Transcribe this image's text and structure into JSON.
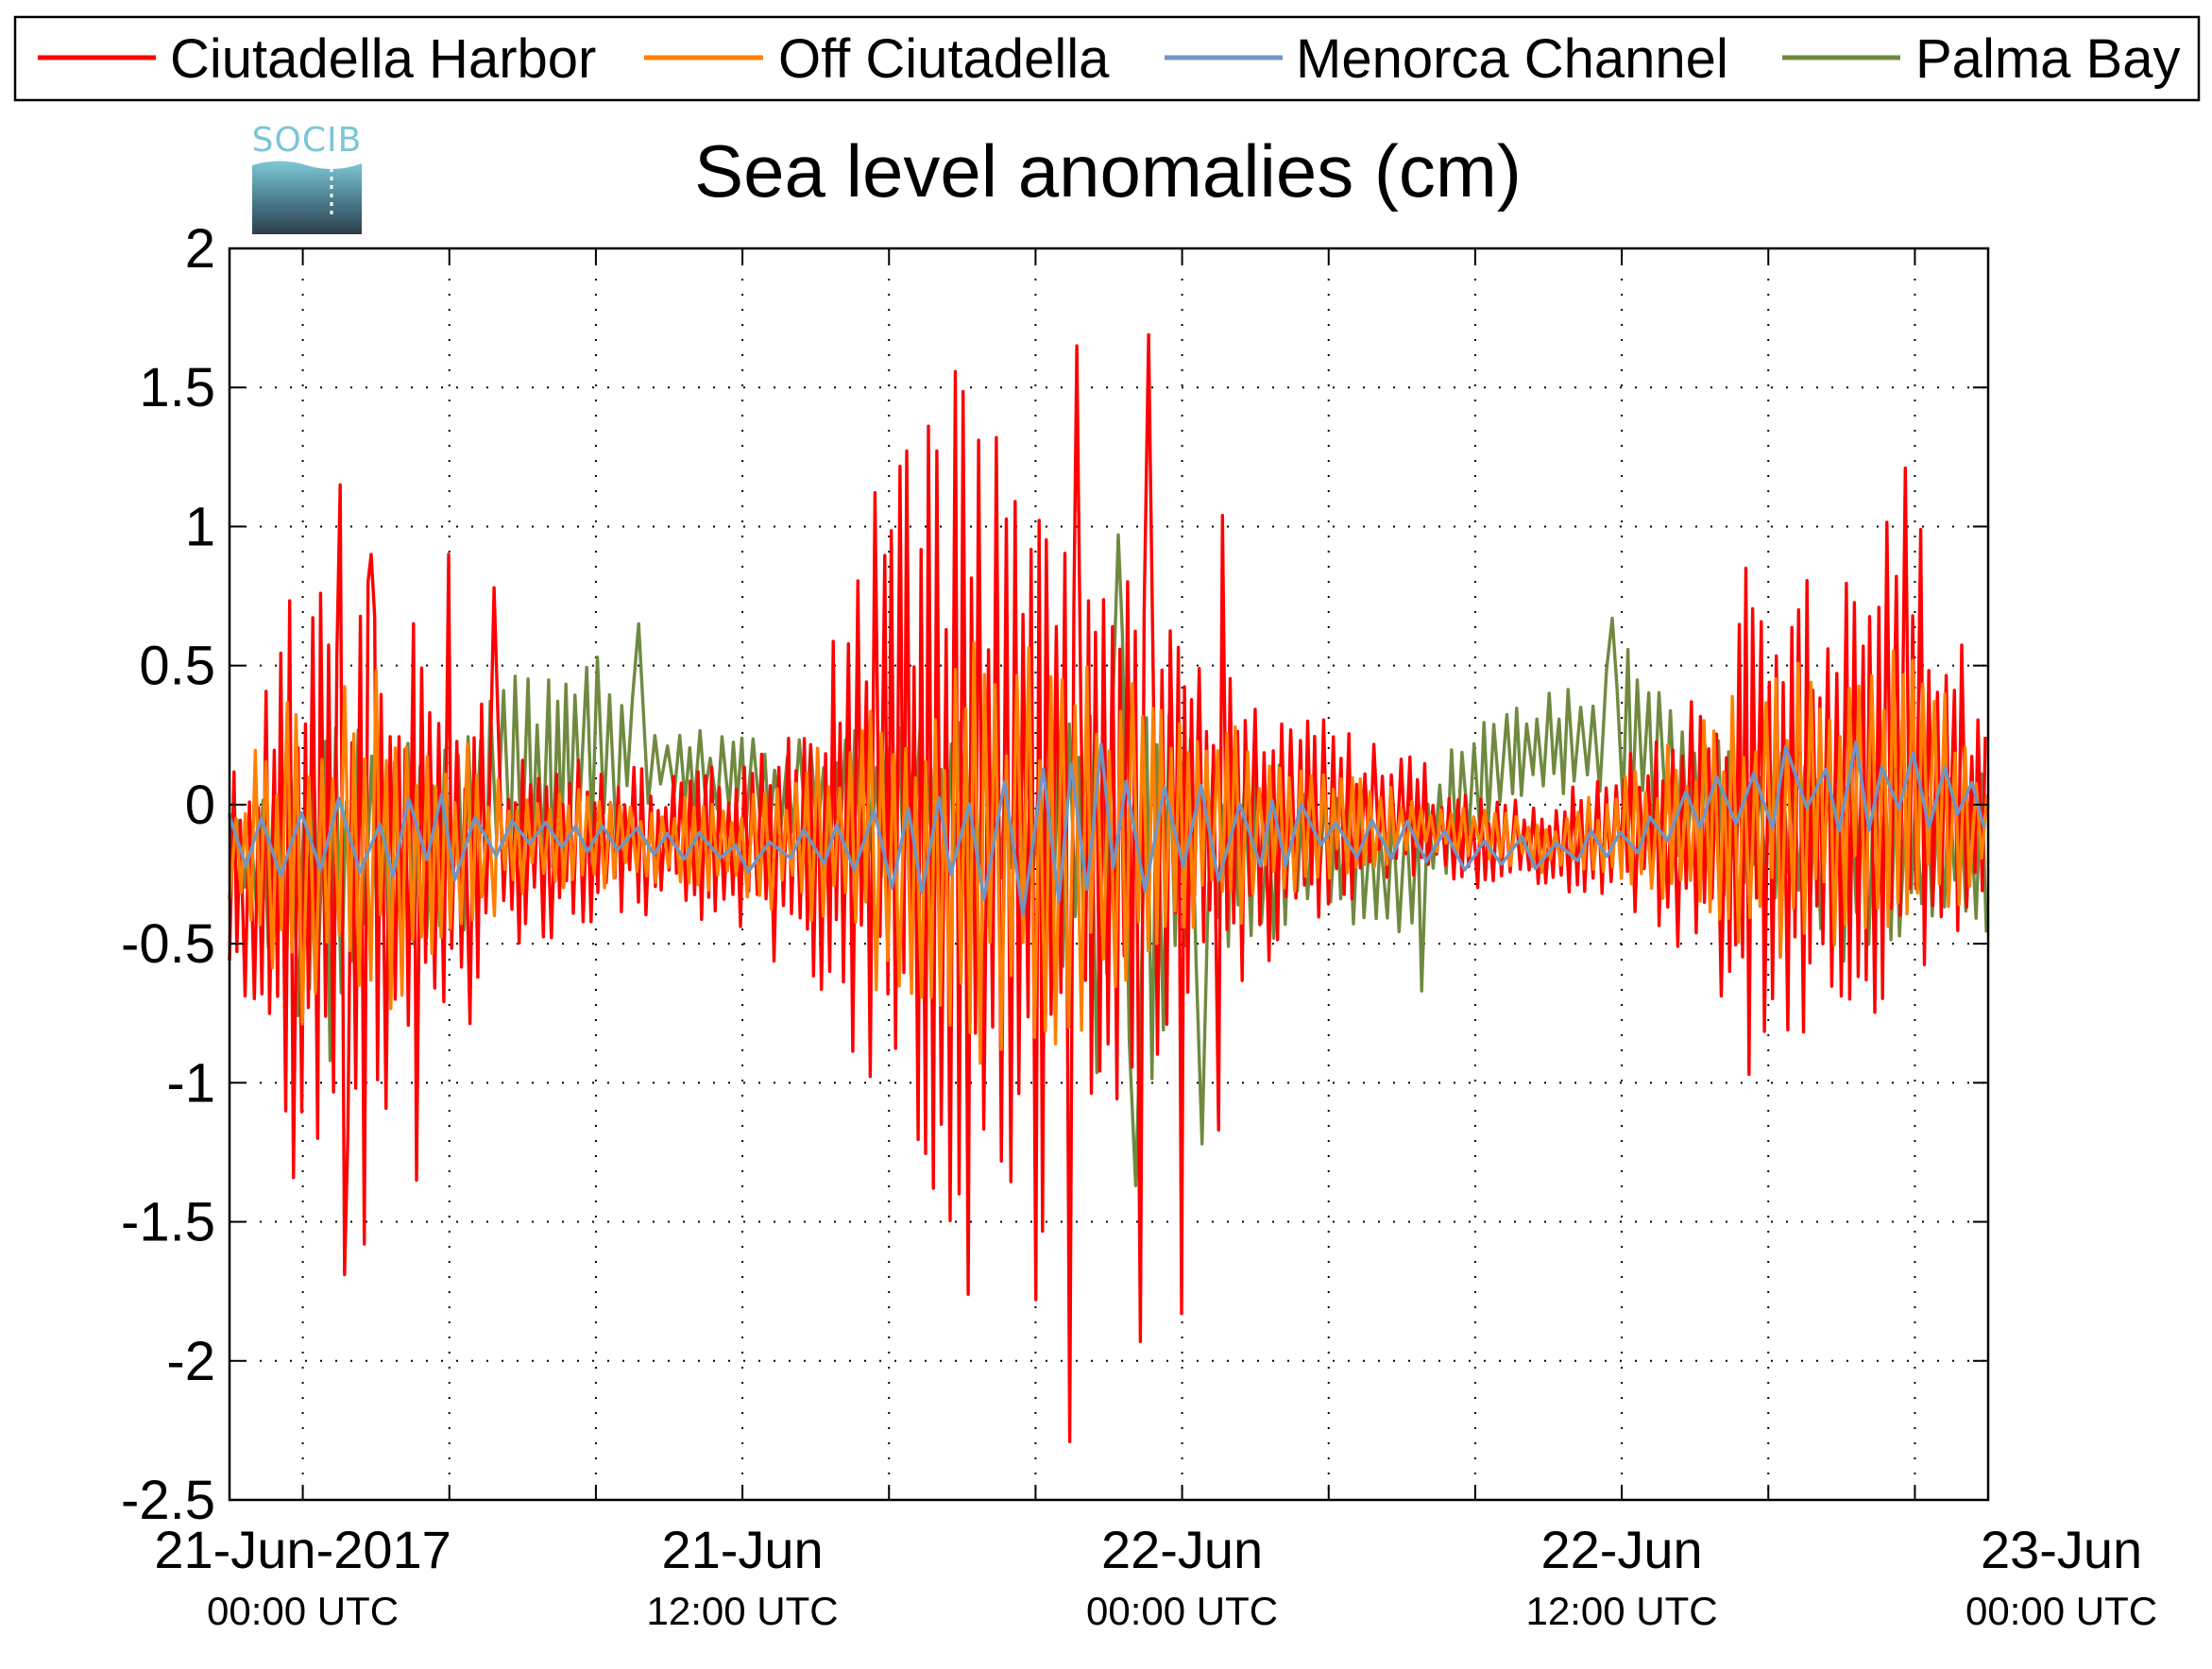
{
  "chart_data": {
    "type": "line",
    "title": "Sea level anomalies (cm)",
    "logo": "SOCIB",
    "xlabel": "",
    "ylabel": "",
    "ylim": [
      -2.5,
      2
    ],
    "yticks": [
      "2",
      "1.5",
      "1",
      "0.5",
      "0",
      "-0.5",
      "-1",
      "-1.5",
      "-2",
      "-2.5"
    ],
    "ytick_values": [
      2,
      1.5,
      1,
      0.5,
      0,
      -0.5,
      -1,
      -1.5,
      -2,
      -2.5
    ],
    "xlim_hours": [
      -2,
      46
    ],
    "xtick_hours": [
      0,
      12,
      24,
      36,
      48
    ],
    "xticks": [
      {
        "date": "21-Jun-2017",
        "time": "00:00 UTC"
      },
      {
        "date": "21-Jun",
        "time": "12:00 UTC"
      },
      {
        "date": "22-Jun",
        "time": "00:00 UTC"
      },
      {
        "date": "22-Jun",
        "time": "12:00 UTC"
      },
      {
        "date": "23-Jun",
        "time": "00:00 UTC"
      }
    ],
    "grid": true,
    "legend_position": "top",
    "colors": {
      "Ciutadella Harbor": "#ff0000",
      "Off Ciutadella": "#ff8000",
      "Menorca Channel": "#6f95c4",
      "Palma Bay": "#6f8a3f"
    },
    "series": [
      {
        "name": "Ciutadella Harbor",
        "envelope": {
          "hours": [
            -2,
            0,
            2,
            4,
            6,
            8,
            10,
            12,
            14,
            16,
            18,
            20,
            22,
            24,
            26,
            28,
            30,
            32,
            34,
            36,
            38,
            40,
            42,
            44,
            46
          ],
          "upper": [
            0.1,
            0.9,
            0.9,
            0.5,
            0.2,
            0.2,
            0.15,
            0.2,
            0.4,
            1.3,
            1.65,
            1.5,
            0.9,
            0.7,
            0.4,
            0.3,
            0.2,
            0.05,
            0.0,
            0.2,
            0.45,
            0.8,
            0.9,
            1.1,
            0.3
          ],
          "lower": [
            -0.6,
            -1.5,
            -1.2,
            -0.9,
            -0.5,
            -0.45,
            -0.4,
            -0.5,
            -0.7,
            -1.2,
            -2.0,
            -1.8,
            -1.2,
            -0.8,
            -0.6,
            -0.4,
            -0.3,
            -0.3,
            -0.3,
            -0.35,
            -0.6,
            -0.9,
            -0.8,
            -0.7,
            -0.4
          ]
        },
        "peaks": [
          {
            "hour": 1.0,
            "value": 1.15
          },
          {
            "hour": 1.9,
            "value": 0.9
          },
          {
            "hour": 4.0,
            "value": 0.9
          },
          {
            "hour": 5.2,
            "value": 0.78
          },
          {
            "hour": 18.9,
            "value": 1.32
          },
          {
            "hour": 21.1,
            "value": 1.65
          },
          {
            "hour": 23.1,
            "value": 1.69
          },
          {
            "hour": 25.1,
            "value": 1.04
          },
          {
            "hour": 39.4,
            "value": 0.85
          },
          {
            "hour": 43.7,
            "value": 1.21
          }
        ],
        "troughs": [
          {
            "hour": 0.4,
            "value": -1.2
          },
          {
            "hour": 1.1,
            "value": -1.69
          },
          {
            "hour": 1.7,
            "value": -1.58
          },
          {
            "hour": 3.1,
            "value": -1.35
          },
          {
            "hour": 20.0,
            "value": -1.78
          },
          {
            "hour": 20.9,
            "value": -2.29
          },
          {
            "hour": 22.8,
            "value": -1.93
          },
          {
            "hour": 24.0,
            "value": -1.83
          },
          {
            "hour": 25.0,
            "value": -1.17
          },
          {
            "hour": 39.5,
            "value": -0.97
          }
        ]
      },
      {
        "name": "Off Ciutadella",
        "envelope": {
          "hours": [
            -2,
            0,
            2,
            4,
            6,
            8,
            10,
            12,
            14,
            16,
            18,
            20,
            22,
            24,
            26,
            28,
            30,
            32,
            34,
            36,
            38,
            40,
            42,
            44,
            46
          ],
          "upper": [
            0.05,
            0.5,
            0.5,
            0.3,
            0.1,
            0.05,
            0.05,
            0.05,
            0.2,
            0.4,
            0.65,
            0.65,
            0.6,
            0.4,
            0.25,
            0.15,
            0.05,
            0.0,
            -0.05,
            0.1,
            0.3,
            0.55,
            0.45,
            0.6,
            0.15
          ],
          "lower": [
            -0.4,
            -0.9,
            -0.8,
            -0.6,
            -0.35,
            -0.3,
            -0.3,
            -0.35,
            -0.45,
            -0.75,
            -0.95,
            -0.9,
            -0.8,
            -0.55,
            -0.4,
            -0.3,
            -0.2,
            -0.2,
            -0.25,
            -0.3,
            -0.45,
            -0.6,
            -0.5,
            -0.45,
            -0.3
          ]
        }
      },
      {
        "name": "Menorca Channel",
        "envelope": {
          "hours": [
            -2,
            0,
            2,
            4,
            6,
            8,
            10,
            12,
            14,
            16,
            18,
            20,
            22,
            24,
            26,
            28,
            30,
            32,
            34,
            36,
            38,
            40,
            42,
            44,
            46
          ],
          "upper": [
            0.0,
            0.1,
            0.05,
            0.05,
            0.0,
            -0.05,
            -0.1,
            -0.1,
            -0.05,
            0.0,
            0.1,
            0.2,
            0.3,
            0.2,
            0.05,
            0.0,
            -0.05,
            -0.1,
            -0.1,
            -0.05,
            0.1,
            0.2,
            0.25,
            0.2,
            0.1
          ],
          "lower": [
            -0.3,
            -0.4,
            -0.35,
            -0.3,
            -0.2,
            -0.2,
            -0.2,
            -0.25,
            -0.25,
            -0.3,
            -0.4,
            -0.4,
            -0.35,
            -0.3,
            -0.25,
            -0.2,
            -0.2,
            -0.25,
            -0.25,
            -0.2,
            -0.15,
            -0.15,
            -0.1,
            -0.1,
            -0.1
          ]
        }
      },
      {
        "name": "Palma Bay",
        "envelope": {
          "hours": [
            -2,
            0,
            2,
            4,
            6,
            8,
            10,
            12,
            14,
            16,
            18,
            20,
            22,
            24,
            26,
            28,
            30,
            32,
            34,
            36,
            38,
            40,
            42,
            44,
            46
          ],
          "upper": [
            0.0,
            0.3,
            0.3,
            0.35,
            0.5,
            0.6,
            0.3,
            0.25,
            0.25,
            0.3,
            0.3,
            0.3,
            0.9,
            0.3,
            0.2,
            0.1,
            0.0,
            0.3,
            0.4,
            0.6,
            0.3,
            0.2,
            0.2,
            0.15,
            0.2
          ],
          "lower": [
            -0.2,
            -0.9,
            -0.7,
            -0.5,
            -0.3,
            -0.2,
            0.0,
            -0.1,
            -0.2,
            -0.3,
            -0.3,
            -0.35,
            -1.35,
            -0.8,
            -0.5,
            -0.45,
            -0.5,
            -0.1,
            0.0,
            0.0,
            -0.3,
            -0.4,
            -0.6,
            -0.45,
            -0.45
          ]
        },
        "peaks": [
          {
            "hour": 9.2,
            "value": 0.65
          },
          {
            "hour": 22.3,
            "value": 0.97
          },
          {
            "hour": 35.7,
            "value": 0.67
          }
        ],
        "troughs": [
          {
            "hour": 0.8,
            "value": -0.92
          },
          {
            "hour": 22.8,
            "value": -1.37
          },
          {
            "hour": 24.5,
            "value": -1.22
          },
          {
            "hour": 30.5,
            "value": -0.67
          },
          {
            "hour": 45.9,
            "value": -0.46
          }
        ]
      }
    ]
  }
}
